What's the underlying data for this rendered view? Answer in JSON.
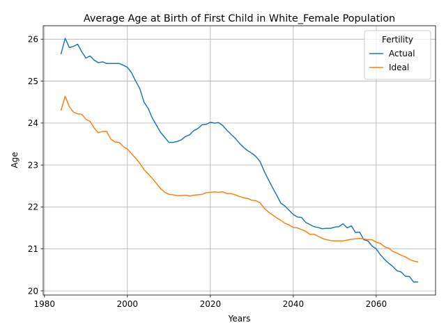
{
  "chart_data": {
    "type": "line",
    "title": "Average Age at Birth of First Child in White_Female Population",
    "xlabel": "Years",
    "ylabel": "Age",
    "xlim": [
      1979.7,
      2074.3
    ],
    "ylim": [
      19.9,
      26.32
    ],
    "xticks": [
      1980,
      2000,
      2020,
      2040,
      2060
    ],
    "yticks": [
      20,
      21,
      22,
      23,
      24,
      25,
      26
    ],
    "grid": true,
    "legend": {
      "title": "Fertility",
      "placement": "upper-right"
    },
    "x": [
      1984,
      1985,
      1986,
      1987,
      1988,
      1989,
      1990,
      1991,
      1992,
      1993,
      1994,
      1995,
      1996,
      1997,
      1998,
      1999,
      2000,
      2001,
      2002,
      2003,
      2004,
      2005,
      2006,
      2007,
      2008,
      2009,
      2010,
      2011,
      2012,
      2013,
      2014,
      2015,
      2016,
      2017,
      2018,
      2019,
      2020,
      2021,
      2022,
      2023,
      2024,
      2025,
      2026,
      2027,
      2028,
      2029,
      2030,
      2031,
      2032,
      2033,
      2034,
      2035,
      2036,
      2037,
      2038,
      2039,
      2040,
      2041,
      2042,
      2043,
      2044,
      2045,
      2046,
      2047,
      2048,
      2049,
      2050,
      2051,
      2052,
      2053,
      2054,
      2055,
      2056,
      2057,
      2058,
      2059,
      2060,
      2061,
      2062,
      2063,
      2064,
      2065,
      2066,
      2067,
      2068,
      2069,
      2070
    ],
    "series": [
      {
        "name": "Actual",
        "color": "#1f77b4",
        "values": [
          25.65,
          26.02,
          25.8,
          25.83,
          25.88,
          25.7,
          25.55,
          25.6,
          25.5,
          25.44,
          25.46,
          25.42,
          25.42,
          25.42,
          25.42,
          25.38,
          25.33,
          25.2,
          25.0,
          24.82,
          24.5,
          24.35,
          24.12,
          23.95,
          23.78,
          23.66,
          23.54,
          23.54,
          23.56,
          23.6,
          23.68,
          23.72,
          23.82,
          23.87,
          23.96,
          23.97,
          24.02,
          24.0,
          24.01,
          23.94,
          23.83,
          23.73,
          23.64,
          23.52,
          23.42,
          23.34,
          23.28,
          23.2,
          23.08,
          22.85,
          22.65,
          22.46,
          22.28,
          22.09,
          22.02,
          21.92,
          21.82,
          21.76,
          21.75,
          21.63,
          21.58,
          21.53,
          21.51,
          21.48,
          21.49,
          21.49,
          21.52,
          21.53,
          21.6,
          21.5,
          21.55,
          21.39,
          21.4,
          21.22,
          21.19,
          21.07,
          21.0,
          20.86,
          20.75,
          20.66,
          20.58,
          20.48,
          20.45,
          20.35,
          20.34,
          20.21,
          20.21
        ]
      },
      {
        "name": "Ideal",
        "color": "#ff7f0e",
        "values": [
          24.31,
          24.64,
          24.39,
          24.26,
          24.22,
          24.21,
          24.09,
          24.04,
          23.88,
          23.77,
          23.8,
          23.8,
          23.62,
          23.55,
          23.54,
          23.44,
          23.38,
          23.27,
          23.16,
          23.04,
          22.89,
          22.79,
          22.68,
          22.56,
          22.44,
          22.35,
          22.3,
          22.29,
          22.27,
          22.27,
          22.28,
          22.26,
          22.28,
          22.29,
          22.3,
          22.34,
          22.35,
          22.36,
          22.35,
          22.36,
          22.32,
          22.32,
          22.29,
          22.25,
          22.22,
          22.2,
          22.16,
          22.15,
          22.1,
          21.97,
          21.88,
          21.81,
          21.74,
          21.68,
          21.61,
          21.57,
          21.51,
          21.5,
          21.46,
          21.42,
          21.35,
          21.35,
          21.3,
          21.25,
          21.22,
          21.2,
          21.19,
          21.19,
          21.19,
          21.21,
          21.23,
          21.24,
          21.25,
          21.24,
          21.22,
          21.22,
          21.16,
          21.13,
          21.05,
          21.02,
          20.94,
          20.9,
          20.85,
          20.81,
          20.75,
          20.71,
          20.69
        ]
      }
    ]
  }
}
